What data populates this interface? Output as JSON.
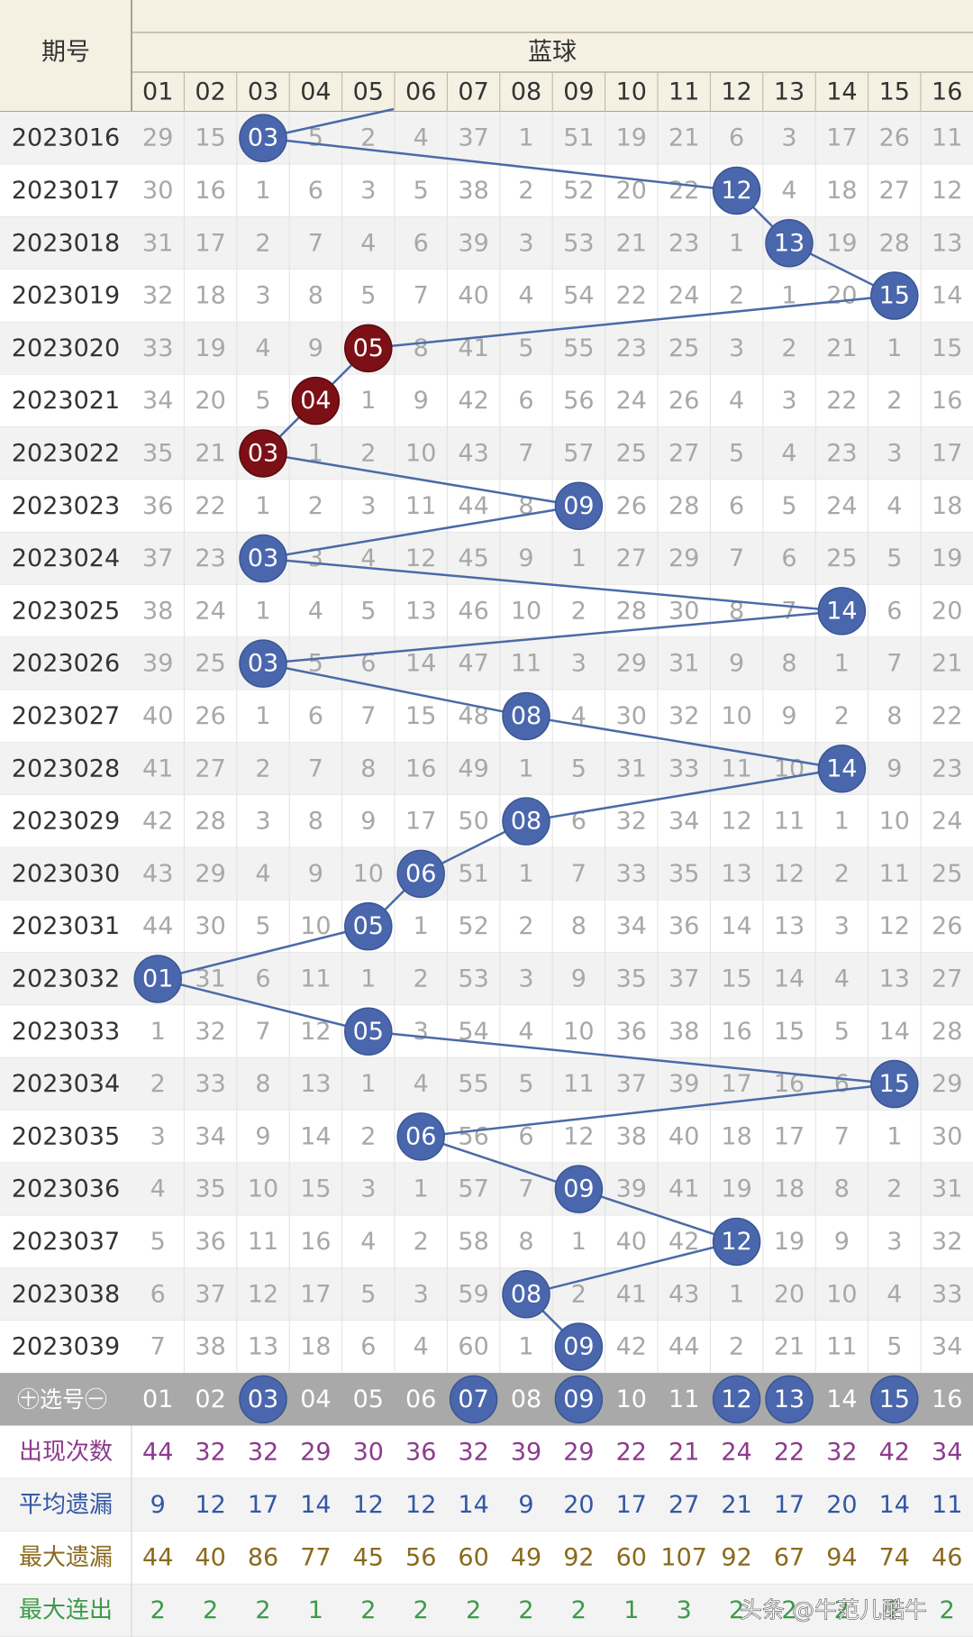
{
  "header": {
    "period_label": "期号",
    "group_label": "蓝球",
    "columns": [
      "01",
      "02",
      "03",
      "04",
      "05",
      "06",
      "07",
      "08",
      "09",
      "10",
      "11",
      "12",
      "13",
      "14",
      "15",
      "16"
    ]
  },
  "chart_data": {
    "type": "table",
    "periods": [
      "2023016",
      "2023017",
      "2023018",
      "2023019",
      "2023020",
      "2023021",
      "2023022",
      "2023023",
      "2023024",
      "2023025",
      "2023026",
      "2023027",
      "2023028",
      "2023029",
      "2023030",
      "2023031",
      "2023032",
      "2023033",
      "2023034",
      "2023035",
      "2023036",
      "2023037",
      "2023038",
      "2023039"
    ],
    "hits": [
      "03",
      "12",
      "13",
      "15",
      "05",
      "04",
      "03",
      "09",
      "03",
      "14",
      "03",
      "08",
      "14",
      "08",
      "06",
      "05",
      "01",
      "05",
      "15",
      "06",
      "09",
      "12",
      "08",
      "09"
    ],
    "red_rows": [
      4,
      5,
      6
    ],
    "rows": [
      [
        29,
        15,
        "03",
        5,
        2,
        4,
        37,
        1,
        51,
        19,
        21,
        6,
        3,
        17,
        26,
        11
      ],
      [
        30,
        16,
        1,
        6,
        3,
        5,
        38,
        2,
        52,
        20,
        22,
        "12",
        4,
        18,
        27,
        12
      ],
      [
        31,
        17,
        2,
        7,
        4,
        6,
        39,
        3,
        53,
        21,
        23,
        1,
        "13",
        19,
        28,
        13
      ],
      [
        32,
        18,
        3,
        8,
        5,
        7,
        40,
        4,
        54,
        22,
        24,
        2,
        1,
        20,
        "15",
        14
      ],
      [
        33,
        19,
        4,
        9,
        "05",
        8,
        41,
        5,
        55,
        23,
        25,
        3,
        2,
        21,
        1,
        15
      ],
      [
        34,
        20,
        5,
        "04",
        1,
        9,
        42,
        6,
        56,
        24,
        26,
        4,
        3,
        22,
        2,
        16
      ],
      [
        35,
        21,
        "03",
        1,
        2,
        10,
        43,
        7,
        57,
        25,
        27,
        5,
        4,
        23,
        3,
        17
      ],
      [
        36,
        22,
        1,
        2,
        3,
        11,
        44,
        8,
        "09",
        26,
        28,
        6,
        5,
        24,
        4,
        18
      ],
      [
        37,
        23,
        "03",
        3,
        4,
        12,
        45,
        9,
        1,
        27,
        29,
        7,
        6,
        25,
        5,
        19
      ],
      [
        38,
        24,
        1,
        4,
        5,
        13,
        46,
        10,
        2,
        28,
        30,
        8,
        7,
        "14",
        6,
        20
      ],
      [
        39,
        25,
        "03",
        5,
        6,
        14,
        47,
        11,
        3,
        29,
        31,
        9,
        8,
        1,
        7,
        21
      ],
      [
        40,
        26,
        1,
        6,
        7,
        15,
        48,
        "08",
        4,
        30,
        32,
        10,
        9,
        2,
        8,
        22
      ],
      [
        41,
        27,
        2,
        7,
        8,
        16,
        49,
        1,
        5,
        31,
        33,
        11,
        10,
        "14",
        9,
        23
      ],
      [
        42,
        28,
        3,
        8,
        9,
        17,
        50,
        "08",
        6,
        32,
        34,
        12,
        11,
        1,
        10,
        24
      ],
      [
        43,
        29,
        4,
        9,
        10,
        "06",
        51,
        1,
        7,
        33,
        35,
        13,
        12,
        2,
        11,
        25
      ],
      [
        44,
        30,
        5,
        10,
        "05",
        1,
        52,
        2,
        8,
        34,
        36,
        14,
        13,
        3,
        12,
        26
      ],
      [
        "01",
        31,
        6,
        11,
        1,
        2,
        53,
        3,
        9,
        35,
        37,
        15,
        14,
        4,
        13,
        27
      ],
      [
        1,
        32,
        7,
        12,
        "05",
        3,
        54,
        4,
        10,
        36,
        38,
        16,
        15,
        5,
        14,
        28
      ],
      [
        2,
        33,
        8,
        13,
        1,
        4,
        55,
        5,
        11,
        37,
        39,
        17,
        16,
        6,
        "15",
        29
      ],
      [
        3,
        34,
        9,
        14,
        2,
        "06",
        56,
        6,
        12,
        38,
        40,
        18,
        17,
        7,
        1,
        30
      ],
      [
        4,
        35,
        10,
        15,
        3,
        1,
        57,
        7,
        "09",
        39,
        41,
        19,
        18,
        8,
        2,
        31
      ],
      [
        5,
        36,
        11,
        16,
        4,
        2,
        58,
        8,
        1,
        40,
        42,
        "12",
        19,
        9,
        3,
        32
      ],
      [
        6,
        37,
        12,
        17,
        5,
        3,
        59,
        "08",
        2,
        41,
        43,
        1,
        20,
        10,
        4,
        33
      ],
      [
        7,
        38,
        13,
        18,
        6,
        4,
        60,
        1,
        "09",
        42,
        44,
        2,
        21,
        11,
        5,
        34
      ]
    ],
    "selector": {
      "label": "㊉选号㊀",
      "selected": [
        "03",
        "07",
        "09",
        "12",
        "13",
        "15"
      ]
    },
    "stats": [
      {
        "label": "出现次数",
        "color": "#8d3a8d",
        "values": [
          44,
          32,
          32,
          29,
          30,
          36,
          32,
          39,
          29,
          22,
          21,
          24,
          22,
          32,
          42,
          34
        ]
      },
      {
        "label": "平均遗漏",
        "color": "#3357a6",
        "values": [
          9,
          12,
          17,
          14,
          12,
          12,
          14,
          9,
          20,
          17,
          27,
          21,
          17,
          20,
          14,
          11
        ]
      },
      {
        "label": "最大遗漏",
        "color": "#8a6a1e",
        "values": [
          44,
          40,
          86,
          77,
          45,
          56,
          60,
          49,
          92,
          60,
          107,
          92,
          67,
          94,
          74,
          46
        ]
      },
      {
        "label": "最大连出",
        "color": "#3c9a4a",
        "values": [
          2,
          2,
          2,
          1,
          2,
          2,
          2,
          2,
          2,
          1,
          3,
          2,
          2,
          2,
          2,
          2
        ]
      }
    ]
  },
  "watermark": "头条 @牛范儿酷牛"
}
